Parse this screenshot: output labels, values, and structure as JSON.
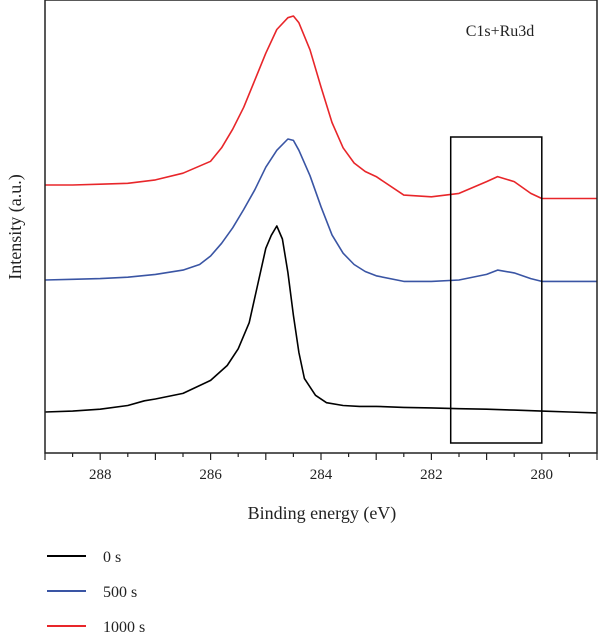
{
  "chart_data": {
    "type": "line",
    "title": "",
    "xlabel": "Binding energy (eV)",
    "ylabel": "Intensity (a.u.)",
    "xlim": [
      289,
      279
    ],
    "x_reversed": true,
    "x_ticks": [
      "288",
      "286",
      "284",
      "282",
      "280"
    ],
    "x_tick_values": [
      288,
      286,
      284,
      282,
      280
    ],
    "y_ticks": false,
    "grid": false,
    "legend": "below",
    "annotation": "C1s+Ru3d",
    "highlight_box": {
      "x_from": 281.65,
      "x_to": 280.0
    },
    "series": [
      {
        "name": "0 s",
        "color": "#000000",
        "x": [
          289,
          288.5,
          288,
          287.5,
          287.2,
          287,
          286.5,
          286,
          285.7,
          285.5,
          285.3,
          285.15,
          285.0,
          284.9,
          284.8,
          284.7,
          284.6,
          284.5,
          284.4,
          284.3,
          284.1,
          283.9,
          283.6,
          283.3,
          283,
          282.5,
          282,
          281.5,
          281,
          280.5,
          280,
          279.5,
          279
        ],
        "y": [
          0.0,
          0.005,
          0.015,
          0.035,
          0.06,
          0.07,
          0.1,
          0.17,
          0.25,
          0.34,
          0.48,
          0.68,
          0.88,
          0.95,
          1.0,
          0.93,
          0.75,
          0.52,
          0.32,
          0.18,
          0.09,
          0.05,
          0.035,
          0.03,
          0.03,
          0.025,
          0.022,
          0.018,
          0.015,
          0.01,
          0.005,
          0.0,
          -0.005
        ]
      },
      {
        "name": "500 s",
        "color": "#3a55a4",
        "x": [
          289,
          288.5,
          288,
          287.5,
          287,
          286.5,
          286.2,
          286,
          285.8,
          285.6,
          285.4,
          285.2,
          285.0,
          284.8,
          284.6,
          284.5,
          284.4,
          284.2,
          284.0,
          283.8,
          283.6,
          283.4,
          283.2,
          283,
          282.5,
          282,
          281.5,
          281.0,
          280.8,
          280.5,
          280.2,
          280.0,
          279.5,
          279
        ],
        "y": [
          0.0,
          0.005,
          0.01,
          0.02,
          0.04,
          0.07,
          0.11,
          0.17,
          0.26,
          0.37,
          0.5,
          0.64,
          0.8,
          0.92,
          1.0,
          0.99,
          0.92,
          0.74,
          0.52,
          0.32,
          0.19,
          0.11,
          0.06,
          0.03,
          -0.01,
          -0.01,
          0.0,
          0.04,
          0.07,
          0.05,
          0.01,
          -0.01,
          -0.01,
          -0.01
        ]
      },
      {
        "name": "1000 s",
        "color": "#e8262a",
        "x": [
          289,
          288.5,
          288,
          287.5,
          287,
          286.5,
          286.0,
          285.8,
          285.6,
          285.4,
          285.2,
          285.0,
          284.8,
          284.6,
          284.5,
          284.4,
          284.2,
          284.0,
          283.8,
          283.6,
          283.4,
          283.2,
          283,
          282.5,
          282,
          281.5,
          281.0,
          280.8,
          280.5,
          280.2,
          280.0,
          279.5,
          279
        ],
        "y": [
          0.0,
          0.0,
          0.005,
          0.01,
          0.03,
          0.07,
          0.14,
          0.22,
          0.33,
          0.46,
          0.62,
          0.78,
          0.92,
          0.99,
          1.0,
          0.96,
          0.8,
          0.58,
          0.37,
          0.22,
          0.13,
          0.08,
          0.05,
          -0.06,
          -0.07,
          -0.05,
          0.02,
          0.05,
          0.02,
          -0.05,
          -0.08,
          -0.08,
          -0.08
        ]
      }
    ]
  }
}
